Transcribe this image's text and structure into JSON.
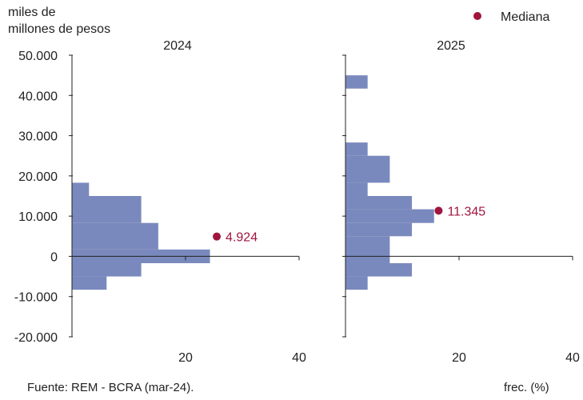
{
  "chart_data": {
    "type": "histogram",
    "ylabel": "miles de millones de pesos",
    "xlabel": "frec. (%)",
    "source": "Fuente: REM - BCRA (mar-24).",
    "legend": {
      "label": "Mediana",
      "position": "top-right"
    },
    "y_ticks": [
      "50.000",
      "40.000",
      "30.000",
      "20.000",
      "10.000",
      "0",
      "-10.000",
      "-20.000"
    ],
    "y_tick_values": [
      50000,
      40000,
      30000,
      20000,
      10000,
      0,
      -10000,
      -20000
    ],
    "ylim": [
      -20000,
      50000
    ],
    "colors": {
      "bars": "#7a89bd",
      "median": "#a0153e"
    },
    "panels": [
      {
        "title": "2024",
        "xlim": [
          0,
          40
        ],
        "x_ticks": [
          "20",
          "40"
        ],
        "x_tick_values": [
          20,
          40
        ],
        "bins": [
          {
            "from": 15000,
            "to": 18300,
            "freq": 3
          },
          {
            "from": 8300,
            "to": 15000,
            "freq": 12.2
          },
          {
            "from": 1700,
            "to": 8300,
            "freq": 15.2
          },
          {
            "from": -1700,
            "to": 1700,
            "freq": 24.3
          },
          {
            "from": -5000,
            "to": -1700,
            "freq": 12.2
          },
          {
            "from": -8300,
            "to": -5000,
            "freq": 6.1
          }
        ],
        "median": {
          "value": 4924,
          "label": "4.924",
          "freq": 25.5
        }
      },
      {
        "title": "2025",
        "xlim": [
          0,
          40
        ],
        "x_ticks": [
          "20",
          "40"
        ],
        "x_tick_values": [
          20,
          40
        ],
        "bins": [
          {
            "from": 41700,
            "to": 45000,
            "freq": 3.9
          },
          {
            "from": 25000,
            "to": 28300,
            "freq": 3.9
          },
          {
            "from": 18300,
            "to": 25000,
            "freq": 7.8
          },
          {
            "from": 15000,
            "to": 18300,
            "freq": 3.9
          },
          {
            "from": 11700,
            "to": 15000,
            "freq": 11.7
          },
          {
            "from": 8300,
            "to": 11700,
            "freq": 15.6
          },
          {
            "from": 5000,
            "to": 8300,
            "freq": 11.7
          },
          {
            "from": -1700,
            "to": 5000,
            "freq": 7.8
          },
          {
            "from": -5000,
            "to": -1700,
            "freq": 11.7
          },
          {
            "from": -8300,
            "to": -5000,
            "freq": 3.9
          }
        ],
        "median": {
          "value": 11345,
          "label": "11.345",
          "freq": 16.4
        }
      }
    ]
  }
}
